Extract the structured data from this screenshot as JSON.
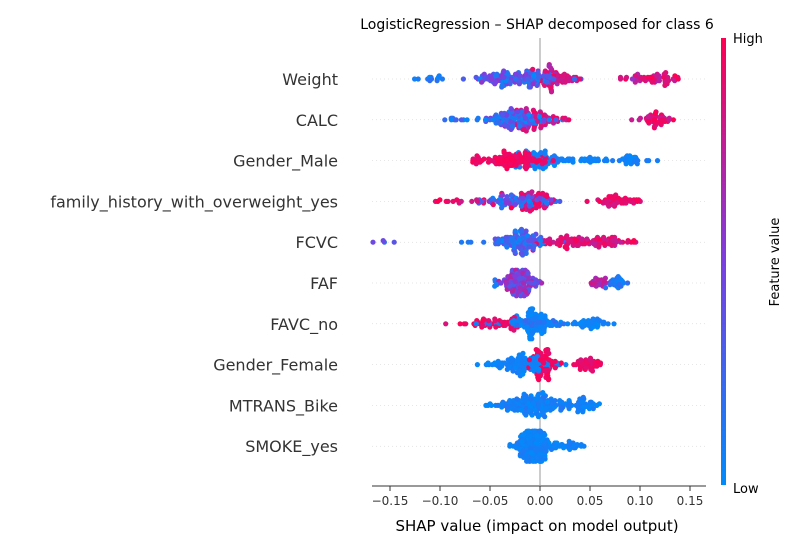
{
  "chart_data": {
    "type": "scatter",
    "title": "LogisticRegression – SHAP decomposed for class 6",
    "xlabel": "SHAP value (impact on model output)",
    "xlim": [
      -0.17,
      0.16
    ],
    "xticks": [
      -0.15,
      -0.1,
      -0.05,
      0.0,
      0.05,
      0.1,
      0.15
    ],
    "xtick_labels": [
      "−0.15",
      "−0.10",
      "−0.05",
      "0.00",
      "0.05",
      "0.10",
      "0.15"
    ],
    "colorbar": {
      "label": "Feature value",
      "high": "High",
      "low": "Low",
      "low_color": "#008bfb",
      "mid_color": "#7b3fe0",
      "high_color": "#ff0052"
    },
    "features": [
      {
        "name": "Weight",
        "clusters": [
          {
            "c": -0.02,
            "s": 0.022,
            "n": 150,
            "lo": 0.0,
            "hi": 0.6
          },
          {
            "c": -0.11,
            "s": 0.01,
            "n": 12,
            "lo": 0.0,
            "hi": 0.2
          },
          {
            "c": 0.01,
            "s": 0.01,
            "n": 40,
            "lo": 0.6,
            "hi": 1.0
          },
          {
            "c": 0.03,
            "s": 0.007,
            "n": 16,
            "lo": 0.75,
            "hi": 1.0
          },
          {
            "c": 0.115,
            "s": 0.014,
            "n": 55,
            "lo": 0.6,
            "hi": 1.0
          }
        ]
      },
      {
        "name": "CALC",
        "clusters": [
          {
            "c": -0.025,
            "s": 0.018,
            "n": 130,
            "lo": 0.0,
            "hi": 0.55
          },
          {
            "c": -0.085,
            "s": 0.007,
            "n": 8,
            "lo": 0.0,
            "hi": 0.3
          },
          {
            "c": 0.0,
            "s": 0.012,
            "n": 50,
            "lo": 0.7,
            "hi": 1.0
          },
          {
            "c": 0.115,
            "s": 0.01,
            "n": 45,
            "lo": 0.75,
            "hi": 1.0
          }
        ]
      },
      {
        "name": "Gender_Male",
        "clusters": [
          {
            "c": -0.03,
            "s": 0.018,
            "n": 120,
            "lo": 0.88,
            "hi": 1.0
          },
          {
            "c": 0.005,
            "s": 0.012,
            "n": 60,
            "lo": 0.0,
            "hi": 0.12
          },
          {
            "c": 0.05,
            "s": 0.012,
            "n": 20,
            "lo": 0.0,
            "hi": 0.1
          },
          {
            "c": 0.09,
            "s": 0.007,
            "n": 28,
            "lo": 0.0,
            "hi": 0.12
          }
        ]
      },
      {
        "name": "family_history_with_overweight_yes",
        "clusters": [
          {
            "c": -0.02,
            "s": 0.018,
            "n": 90,
            "lo": 0.0,
            "hi": 0.6
          },
          {
            "c": -0.07,
            "s": 0.022,
            "n": 18,
            "lo": 0.8,
            "hi": 1.0
          },
          {
            "c": -0.005,
            "s": 0.008,
            "n": 50,
            "lo": 0.75,
            "hi": 1.0
          },
          {
            "c": 0.075,
            "s": 0.014,
            "n": 50,
            "lo": 0.8,
            "hi": 1.0
          }
        ]
      },
      {
        "name": "FCVC",
        "clusters": [
          {
            "c": -0.02,
            "s": 0.014,
            "n": 120,
            "lo": 0.0,
            "hi": 0.45
          },
          {
            "c": -0.14,
            "s": 0.009,
            "n": 4,
            "lo": 0.2,
            "hi": 0.45
          },
          {
            "c": -0.07,
            "s": 0.004,
            "n": 3,
            "lo": 0.0,
            "hi": 0.15
          },
          {
            "c": 0.03,
            "s": 0.018,
            "n": 60,
            "lo": 0.75,
            "hi": 1.0
          },
          {
            "c": 0.07,
            "s": 0.011,
            "n": 45,
            "lo": 0.75,
            "hi": 1.0
          }
        ]
      },
      {
        "name": "FAF",
        "clusters": [
          {
            "c": -0.02,
            "s": 0.009,
            "n": 130,
            "lo": 0.3,
            "hi": 0.75
          },
          {
            "c": -0.045,
            "s": 0.003,
            "n": 4,
            "lo": 0.0,
            "hi": 0.2
          },
          {
            "c": 0.06,
            "s": 0.004,
            "n": 25,
            "lo": 0.55,
            "hi": 0.85
          },
          {
            "c": 0.077,
            "s": 0.004,
            "n": 25,
            "lo": 0.0,
            "hi": 0.2
          }
        ]
      },
      {
        "name": "FAVC_no",
        "clusters": [
          {
            "c": -0.01,
            "s": 0.02,
            "n": 80,
            "lo": 0.0,
            "hi": 0.25
          },
          {
            "c": -0.045,
            "s": 0.016,
            "n": 40,
            "lo": 0.85,
            "hi": 1.0
          },
          {
            "c": -0.005,
            "s": 0.006,
            "n": 60,
            "lo": 0.0,
            "hi": 0.1
          },
          {
            "c": 0.05,
            "s": 0.008,
            "n": 35,
            "lo": 0.0,
            "hi": 0.1
          }
        ]
      },
      {
        "name": "Gender_Female",
        "clusters": [
          {
            "c": -0.015,
            "s": 0.014,
            "n": 120,
            "lo": 0.0,
            "hi": 0.12
          },
          {
            "c": -0.055,
            "s": 0.006,
            "n": 3,
            "lo": 0.0,
            "hi": 0.1
          },
          {
            "c": 0.003,
            "s": 0.006,
            "n": 60,
            "lo": 0.88,
            "hi": 1.0
          },
          {
            "c": 0.048,
            "s": 0.007,
            "n": 40,
            "lo": 0.85,
            "hi": 1.0
          }
        ]
      },
      {
        "name": "MTRANS_Bike",
        "clusters": [
          {
            "c": -0.005,
            "s": 0.018,
            "n": 170,
            "lo": 0.0,
            "hi": 0.15
          },
          {
            "c": 0.045,
            "s": 0.008,
            "n": 35,
            "lo": 0.0,
            "hi": 0.12
          },
          {
            "c": -0.05,
            "s": 0.002,
            "n": 2,
            "lo": 0.0,
            "hi": 0.1
          }
        ]
      },
      {
        "name": "SMOKE_yes",
        "clusters": [
          {
            "c": -0.005,
            "s": 0.009,
            "n": 200,
            "lo": 0.0,
            "hi": 0.12
          },
          {
            "c": 0.03,
            "s": 0.008,
            "n": 20,
            "lo": 0.0,
            "hi": 0.12
          },
          {
            "c": -0.02,
            "s": 0.004,
            "n": 10,
            "lo": 0.0,
            "hi": 0.12
          }
        ]
      }
    ]
  }
}
